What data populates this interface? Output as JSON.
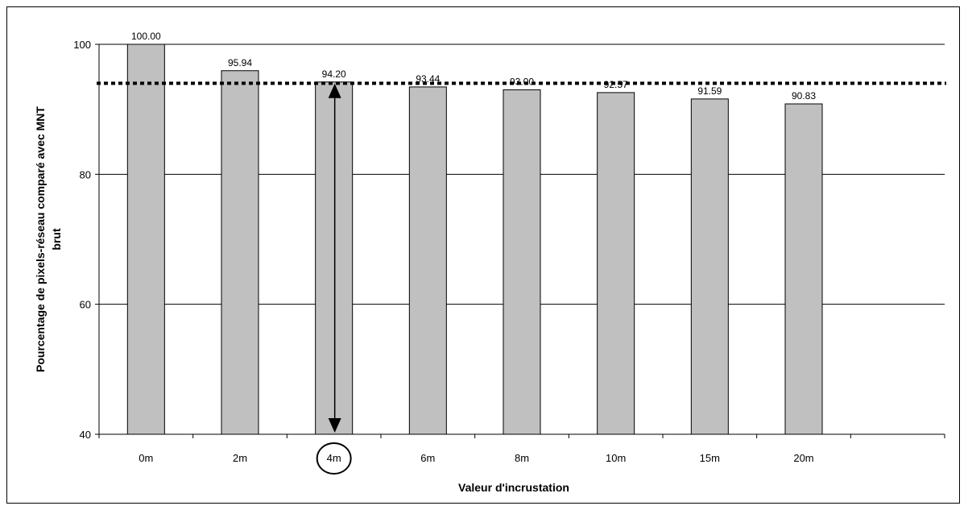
{
  "chart_data": {
    "type": "bar",
    "title": "",
    "xlabel": "Valeur d'incrustation",
    "ylabel_lines": [
      "Pourcentage de pixels-réseau comparé avec MNT",
      "brut"
    ],
    "categories": [
      "0m",
      "2m",
      "4m",
      "6m",
      "8m",
      "10m",
      "15m",
      "20m"
    ],
    "values": [
      100.0,
      95.94,
      94.2,
      93.44,
      93.0,
      92.57,
      91.59,
      90.83
    ],
    "value_labels": [
      "100.00",
      "95.94",
      "94.20",
      "93.44",
      "93.00",
      "92.57",
      "91.59",
      "90.83"
    ],
    "ylim": [
      40,
      100
    ],
    "yticks": [
      40,
      60,
      80,
      100
    ],
    "grid": true,
    "reference_line": {
      "value": 94,
      "style": "dotted"
    },
    "highlight": {
      "category": "4m",
      "circled_label": true,
      "arrow": "double-headed from 40 to bar top"
    },
    "colors": {
      "bar_fill": "#c0c0c0",
      "bar_stroke": "#000000",
      "grid": "#000000"
    }
  }
}
